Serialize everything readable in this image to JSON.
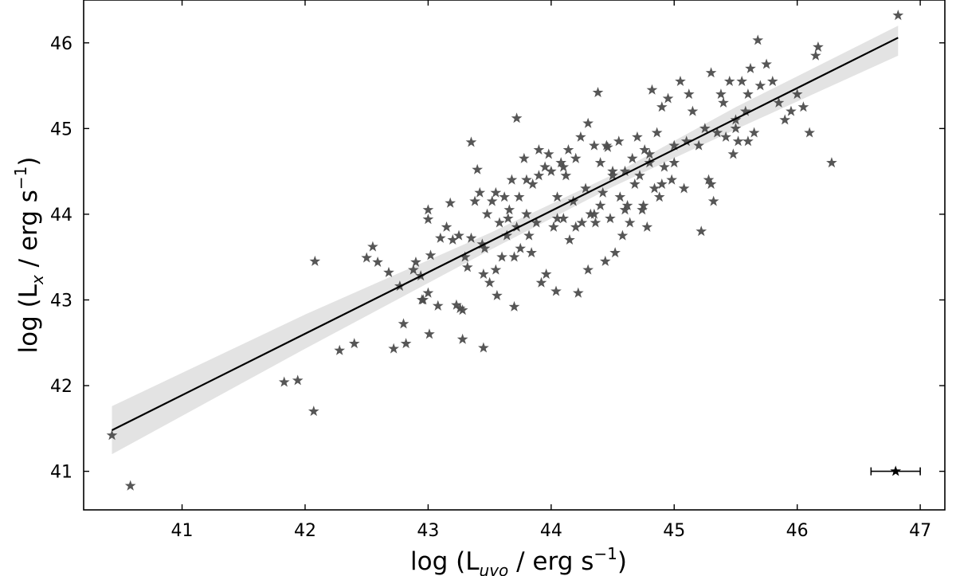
{
  "chart_data": {
    "type": "scatter",
    "title": "",
    "xlabel": {
      "prefix": "log (L",
      "sub": "uvo",
      "suffix": " / erg s",
      "sup": "−1",
      "close": ")"
    },
    "ylabel": {
      "prefix": "log (L",
      "sub": "x",
      "suffix": " / erg s",
      "sup": "−1",
      "close": ")"
    },
    "xlim": [
      40.2,
      47.2
    ],
    "ylim": [
      40.55,
      46.5
    ],
    "xticks": [
      41,
      42,
      43,
      44,
      45,
      46,
      47
    ],
    "yticks": [
      41,
      42,
      43,
      44,
      45,
      46
    ],
    "xtick_labels": [
      "41",
      "42",
      "43",
      "44",
      "45",
      "46",
      "47"
    ],
    "ytick_labels": [
      "41",
      "42",
      "43",
      "44",
      "45",
      "46"
    ],
    "grid": false,
    "marker": "star",
    "colors": {
      "points": "#4d4d4d",
      "fit_line": "#000000",
      "band": "#e3e3e3",
      "errorbar": "#000000"
    },
    "fit_line": {
      "x": [
        40.43,
        46.82
      ],
      "y": [
        41.48,
        46.06
      ]
    },
    "confidence_band": {
      "x": [
        40.43,
        42.0,
        43.5,
        44.5,
        45.5,
        46.82
      ],
      "lower": [
        41.2,
        42.43,
        43.58,
        44.32,
        44.99,
        45.85
      ],
      "upper": [
        41.76,
        42.83,
        43.78,
        44.46,
        45.25,
        46.2
      ]
    },
    "error_bar": {
      "x": 46.8,
      "y": 41.0,
      "xerr": 0.2
    },
    "series": [
      {
        "x": [
          40.43,
          40.58,
          41.83,
          41.94,
          42.07,
          42.08,
          42.28,
          42.4,
          42.5,
          42.59,
          42.68,
          42.72,
          42.77,
          42.8,
          42.82,
          42.88,
          42.9,
          42.94,
          42.96,
          43.0,
          43.0,
          43.01,
          43.02,
          43.08,
          43.15,
          43.18,
          43.2,
          43.23,
          43.25,
          43.26,
          43.28,
          43.3,
          43.32,
          43.35,
          43.38,
          43.4,
          43.42,
          43.44,
          43.45,
          43.46,
          43.48,
          43.5,
          43.52,
          43.55,
          43.56,
          43.58,
          43.6,
          43.62,
          43.64,
          43.66,
          43.68,
          43.7,
          43.72,
          43.74,
          43.75,
          43.78,
          43.8,
          43.82,
          43.84,
          43.85,
          43.88,
          43.9,
          43.92,
          43.95,
          43.96,
          43.98,
          44.0,
          44.02,
          44.04,
          44.05,
          44.08,
          44.1,
          44.12,
          44.14,
          44.15,
          44.18,
          44.2,
          44.22,
          44.24,
          44.25,
          44.28,
          44.3,
          44.32,
          44.35,
          44.36,
          44.38,
          44.4,
          44.42,
          44.44,
          44.46,
          44.48,
          44.5,
          44.52,
          44.55,
          44.56,
          44.58,
          44.6,
          44.62,
          44.64,
          44.66,
          44.68,
          44.7,
          44.72,
          44.74,
          44.76,
          44.78,
          44.8,
          44.82,
          44.84,
          44.86,
          44.88,
          44.9,
          44.92,
          44.95,
          44.98,
          45.0,
          45.05,
          45.08,
          45.1,
          45.12,
          45.15,
          45.2,
          45.22,
          45.25,
          45.28,
          45.3,
          45.32,
          45.35,
          45.38,
          45.4,
          45.42,
          45.45,
          45.48,
          45.5,
          45.52,
          45.55,
          45.58,
          45.6,
          45.62,
          45.65,
          45.68,
          45.7,
          45.75,
          45.8,
          45.85,
          45.9,
          45.95,
          46.0,
          46.05,
          46.1,
          46.15,
          46.17,
          46.28,
          46.82,
          43.35,
          43.72,
          44.45,
          44.9,
          43.0,
          42.95,
          43.28,
          43.7,
          44.2,
          43.9,
          44.3,
          44.6,
          45.3,
          45.5,
          43.1,
          43.45,
          44.05,
          44.5,
          44.75,
          43.55,
          44.35,
          45.0,
          45.6,
          42.55,
          43.65,
          44.1,
          44.8,
          43.8,
          44.4
        ],
        "y": [
          41.42,
          40.83,
          42.04,
          42.06,
          41.7,
          43.45,
          42.41,
          42.49,
          43.49,
          43.44,
          43.32,
          42.43,
          43.16,
          42.72,
          42.49,
          43.35,
          43.44,
          43.28,
          43.0,
          43.94,
          43.08,
          42.6,
          43.52,
          42.93,
          43.85,
          44.13,
          43.7,
          42.94,
          43.75,
          42.9,
          42.54,
          43.5,
          43.38,
          43.72,
          44.15,
          44.52,
          44.25,
          43.65,
          42.44,
          43.6,
          44.0,
          43.2,
          44.15,
          43.35,
          43.05,
          43.9,
          43.5,
          44.2,
          43.75,
          44.05,
          44.4,
          42.92,
          43.85,
          44.2,
          43.6,
          44.65,
          44.0,
          43.75,
          43.55,
          44.35,
          43.9,
          44.75,
          43.2,
          44.55,
          43.3,
          44.7,
          44.5,
          43.85,
          43.1,
          44.2,
          44.6,
          43.95,
          44.45,
          44.75,
          43.7,
          44.15,
          44.65,
          43.08,
          44.9,
          43.9,
          44.3,
          45.06,
          44.0,
          44.8,
          43.9,
          45.42,
          44.6,
          44.25,
          43.45,
          44.78,
          43.95,
          44.5,
          43.55,
          44.85,
          44.2,
          43.75,
          44.5,
          44.1,
          43.9,
          44.65,
          44.35,
          44.9,
          44.45,
          44.05,
          44.75,
          43.85,
          44.6,
          45.45,
          44.3,
          44.95,
          44.2,
          45.25,
          44.55,
          45.35,
          44.4,
          44.8,
          45.55,
          44.3,
          44.85,
          45.4,
          45.2,
          44.8,
          43.8,
          45.0,
          44.4,
          45.65,
          44.15,
          44.95,
          45.4,
          45.3,
          44.9,
          45.55,
          44.7,
          45.1,
          44.85,
          45.55,
          45.2,
          45.4,
          45.7,
          44.95,
          46.03,
          45.5,
          45.75,
          45.55,
          45.3,
          45.1,
          45.2,
          45.4,
          45.25,
          44.95,
          45.85,
          45.95,
          44.6,
          46.32,
          44.84,
          45.12,
          44.8,
          44.35,
          44.05,
          43.0,
          42.88,
          43.5,
          43.85,
          44.45,
          43.35,
          44.05,
          44.35,
          45.0,
          43.72,
          43.3,
          43.95,
          44.45,
          44.1,
          44.25,
          44.0,
          44.6,
          44.85,
          43.62,
          43.95,
          44.55,
          44.7,
          44.4,
          44.1
        ]
      }
    ]
  }
}
